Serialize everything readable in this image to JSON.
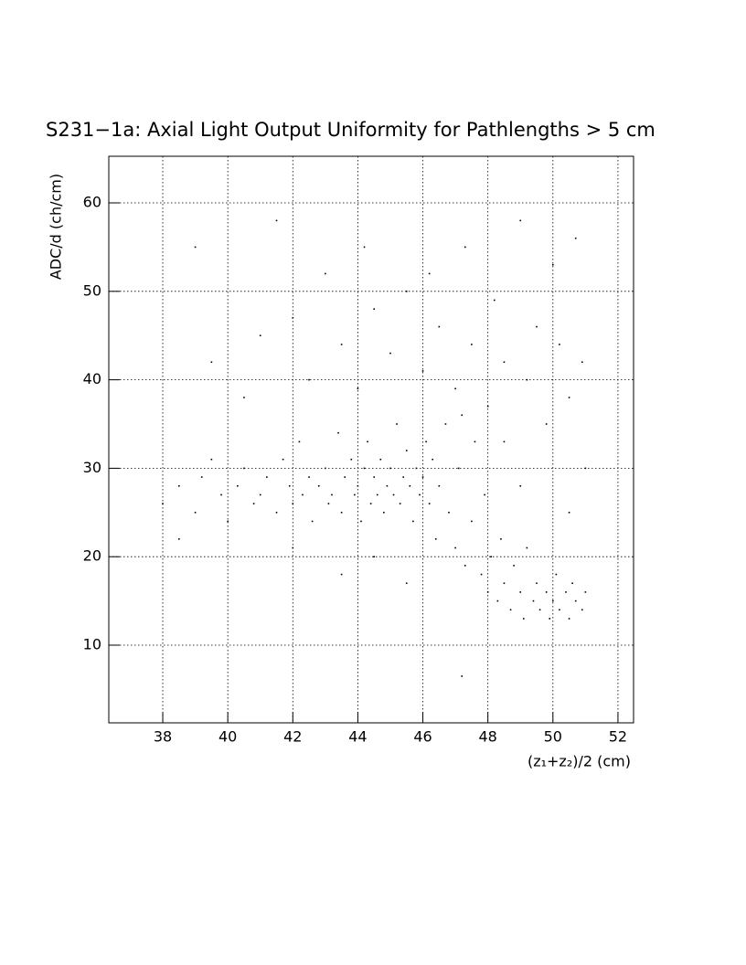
{
  "chart_data": {
    "type": "scatter",
    "title": "S231−1a: Axial Light Output Uniformity for Pathlengths > 5 cm",
    "x_label": "(z₁+z₂)/2 (cm)",
    "y_label": "ADC/d (ch/cm)",
    "xlim": [
      36.34,
      52.48
    ],
    "ylim": [
      1.22,
      65.27
    ],
    "xticks": [
      38,
      40,
      42,
      44,
      46,
      48,
      50,
      52
    ],
    "yticks": [
      10,
      20,
      30,
      40,
      50,
      60
    ],
    "grid": true,
    "color": "#000000",
    "x": [
      38.0,
      38.5,
      39.0,
      39.2,
      39.5,
      39.8,
      40.0,
      40.3,
      40.5,
      40.8,
      41.0,
      41.2,
      41.5,
      41.7,
      41.9,
      42.0,
      42.2,
      42.3,
      42.5,
      42.6,
      42.8,
      43.0,
      43.1,
      43.2,
      43.4,
      43.5,
      43.6,
      43.8,
      43.9,
      44.0,
      44.1,
      44.2,
      44.3,
      44.4,
      44.5,
      44.6,
      44.7,
      44.8,
      44.9,
      45.0,
      45.1,
      45.2,
      45.3,
      45.4,
      45.5,
      45.6,
      45.7,
      45.8,
      45.9,
      46.0,
      46.1,
      46.2,
      46.3,
      46.4,
      46.5,
      46.7,
      46.8,
      47.0,
      47.1,
      47.2,
      47.3,
      47.5,
      47.6,
      47.8,
      47.9,
      48.0,
      48.1,
      48.3,
      48.4,
      48.5,
      48.7,
      48.8,
      49.0,
      49.1,
      49.2,
      49.4,
      49.5,
      49.6,
      49.8,
      49.9,
      50.0,
      50.1,
      50.2,
      50.4,
      50.5,
      50.6,
      50.7,
      50.9,
      51.0,
      39.5,
      40.5,
      41.0,
      42.0,
      42.5,
      43.0,
      43.5,
      44.0,
      44.5,
      45.0,
      45.5,
      46.0,
      46.2,
      46.5,
      47.0,
      47.3,
      47.5,
      48.0,
      48.2,
      48.5,
      49.0,
      49.2,
      49.5,
      49.8,
      50.0,
      50.2,
      50.5,
      50.7,
      50.9,
      41.5,
      44.2,
      39.0,
      51.0,
      50.5,
      49.0,
      48.5,
      42.0,
      43.5,
      44.5,
      45.5,
      47.2,
      38.5
    ],
    "y": [
      26,
      28,
      25,
      29,
      31,
      27,
      24,
      28,
      30,
      26,
      27,
      29,
      25,
      31,
      28,
      26,
      33,
      27,
      29,
      24,
      28,
      30,
      26,
      27,
      34,
      25,
      29,
      31,
      27,
      28,
      24,
      30,
      33,
      26,
      29,
      27,
      31,
      25,
      28,
      30,
      27,
      35,
      26,
      29,
      32,
      28,
      24,
      30,
      27,
      29,
      33,
      26,
      31,
      22,
      28,
      35,
      25,
      21,
      30,
      36,
      19,
      24,
      33,
      18,
      27,
      16,
      20,
      15,
      22,
      17,
      14,
      19,
      16,
      13,
      21,
      15,
      17,
      14,
      16,
      13,
      15,
      18,
      14,
      16,
      13,
      17,
      15,
      14,
      16,
      42,
      38,
      45,
      47,
      40,
      52,
      44,
      39,
      48,
      43,
      50,
      41,
      52,
      46,
      39,
      55,
      44,
      37,
      49,
      42,
      58,
      40,
      46,
      35,
      53,
      44,
      38,
      56,
      42,
      58,
      55,
      55,
      30,
      25,
      28,
      33,
      21,
      18,
      20,
      17,
      6.5,
      22
    ]
  }
}
